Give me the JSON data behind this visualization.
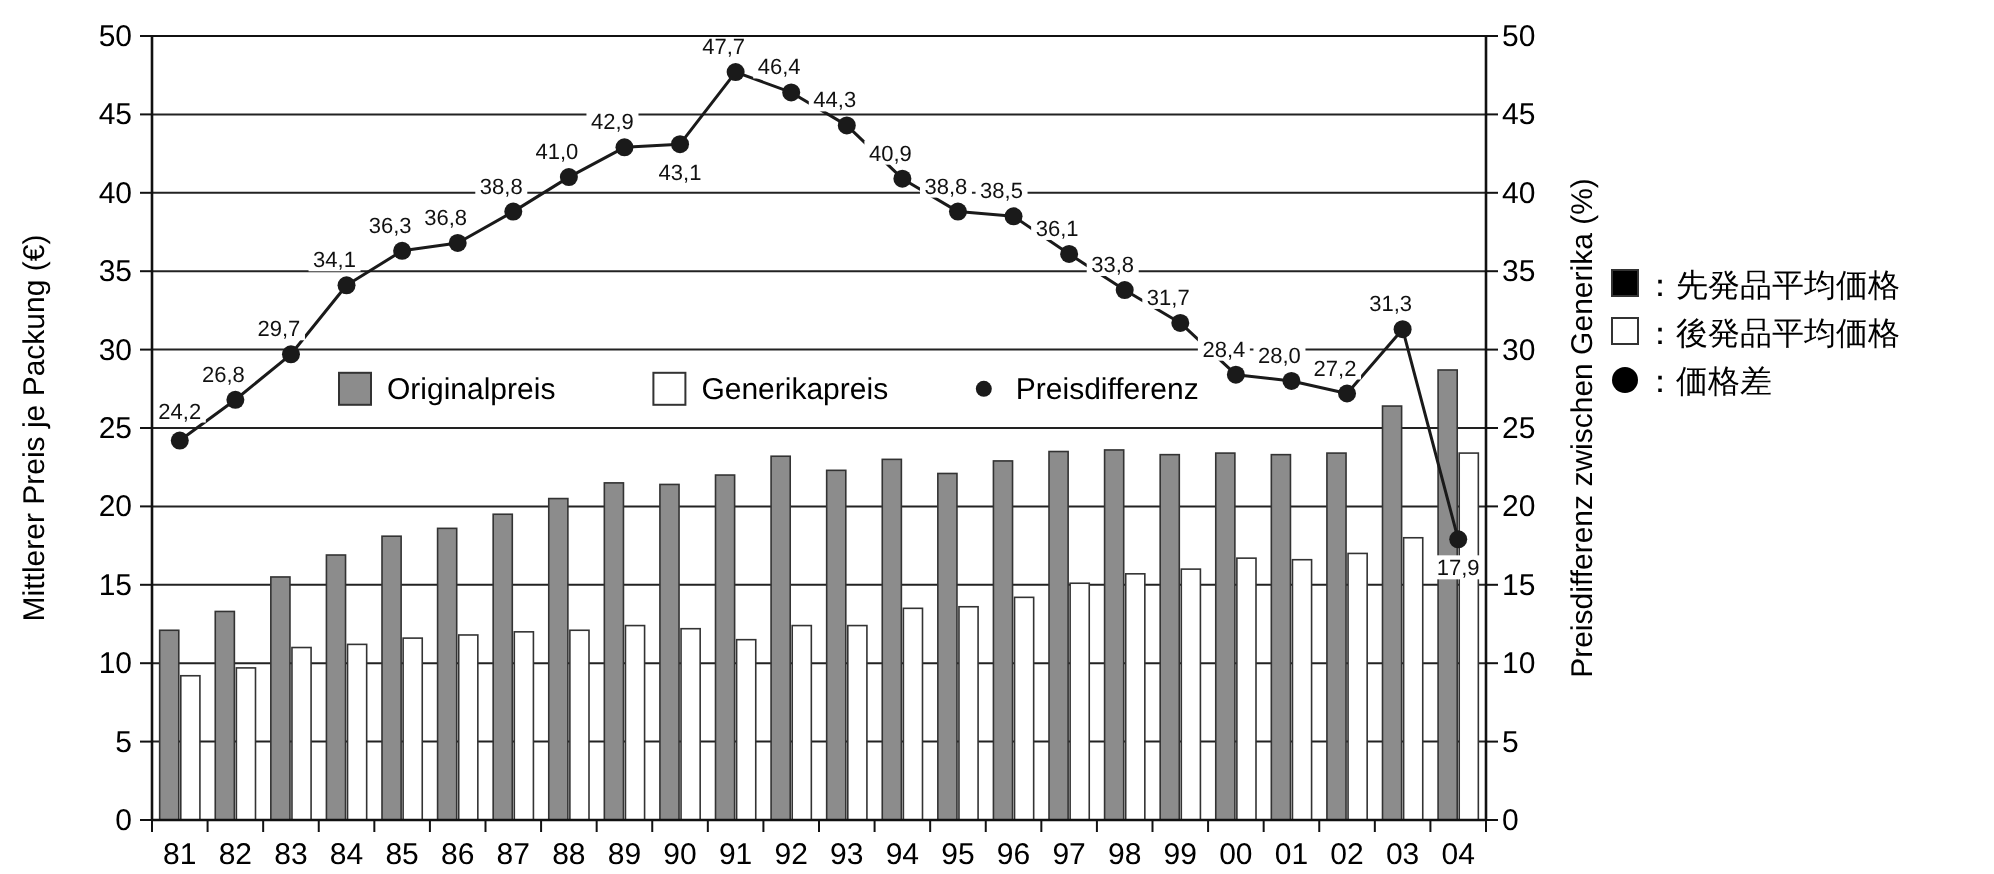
{
  "chart_data": {
    "type": "bar",
    "ylabel": "Mittlerer Preis je Packung (€)",
    "y2label": "Preisdifferenz zwischen Generika (%)",
    "categories": [
      "81",
      "82",
      "83",
      "84",
      "85",
      "86",
      "87",
      "88",
      "89",
      "90",
      "91",
      "92",
      "93",
      "94",
      "95",
      "96",
      "97",
      "98",
      "99",
      "00",
      "01",
      "02",
      "03",
      "04"
    ],
    "series": [
      {
        "name": "Originalpreis",
        "color": "#8c8c8c",
        "values": [
          12.1,
          13.3,
          15.5,
          16.9,
          18.1,
          18.6,
          19.5,
          20.5,
          21.5,
          21.4,
          22.0,
          23.2,
          22.3,
          23.0,
          22.1,
          22.9,
          23.5,
          23.6,
          23.3,
          23.4,
          23.3,
          23.4,
          26.4,
          28.7
        ]
      },
      {
        "name": "Generikapreis",
        "color": "#ffffff",
        "values": [
          9.2,
          9.7,
          11.0,
          11.2,
          11.6,
          11.8,
          12.0,
          12.1,
          12.4,
          12.2,
          11.5,
          12.4,
          12.4,
          13.5,
          13.6,
          14.2,
          15.1,
          15.7,
          16.0,
          16.7,
          16.6,
          17.0,
          18.0,
          23.4
        ]
      },
      {
        "name": "Preisdifferenz",
        "type": "line",
        "axis": "y2",
        "color": "#1a1a1a",
        "values": [
          24.2,
          26.8,
          29.7,
          34.1,
          36.3,
          36.8,
          38.8,
          41.0,
          42.9,
          43.1,
          47.7,
          46.4,
          44.3,
          40.9,
          38.8,
          38.5,
          36.1,
          33.8,
          31.7,
          28.4,
          28.0,
          27.2,
          31.3,
          17.9
        ],
        "value_labels": [
          "24,2",
          "26,8",
          "29,7",
          "34,1",
          "36,3",
          "36,8",
          "38,8",
          "41,0",
          "42,9",
          "43,1",
          "47,7",
          "46,4",
          "44,3",
          "40,9",
          "38,8",
          "38,5",
          "36,1",
          "33,8",
          "31,7",
          "28,4",
          "28,0",
          "27,2",
          "31,3",
          "17,9"
        ]
      }
    ],
    "ylim": [
      0,
      50
    ],
    "yticks": [
      0,
      5,
      10,
      15,
      20,
      25,
      30,
      35,
      40,
      45,
      50
    ],
    "y2lim": [
      0,
      50
    ],
    "y2ticks": [
      0,
      5,
      10,
      15,
      20,
      25,
      30,
      35,
      40,
      45,
      50
    ],
    "grid": "y",
    "legend": "center",
    "marker": "circle",
    "line_style": "solid",
    "annotations": [
      "：先発品平均価格",
      "：後発品平均価格",
      "：価格差"
    ]
  }
}
